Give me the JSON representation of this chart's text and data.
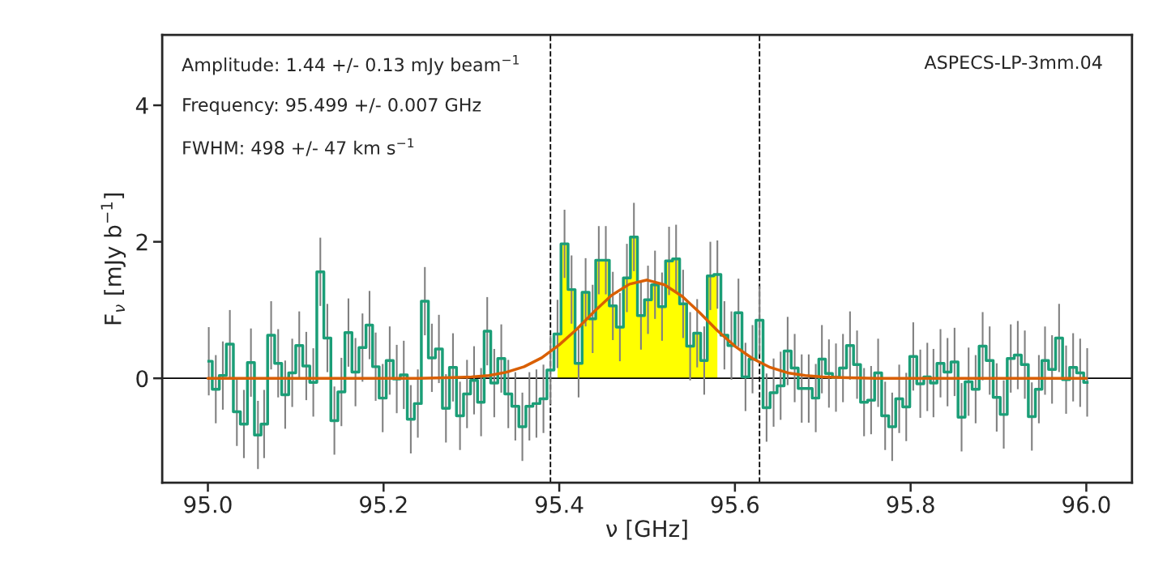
{
  "chart_data": {
    "type": "step",
    "xlabel": "ν [GHz]",
    "ylabel": "F$_{ν}$ [mJy b$^{−1}$]",
    "annotations": [
      "Amplitude: 1.44 +/- 0.13 mJy beam$^{−1}$",
      "Frequency: 95.499 +/- 0.007 GHz",
      "FWHM: 498 +/- 47 km s$^{−1}$",
      "ASPECS-LP-3mm.04"
    ],
    "xlim": [
      94.948,
      96.052
    ],
    "ylim": [
      -1.53,
      5.03
    ],
    "xticks": [
      {
        "value": 95.0,
        "label": "95.0"
      },
      {
        "value": 95.2,
        "label": "95.2"
      },
      {
        "value": 95.4,
        "label": "95.4"
      },
      {
        "value": 95.6,
        "label": "95.6"
      },
      {
        "value": 95.8,
        "label": "95.8"
      },
      {
        "value": 96.0,
        "label": "96.0"
      }
    ],
    "yticks": [
      0,
      2,
      4
    ],
    "grid": false,
    "ref_lines": [
      {
        "axis": "y",
        "value": 0,
        "color": "#000000",
        "line_style": "solid"
      },
      {
        "axis": "x",
        "value": 95.39,
        "color": "#000000",
        "line_style": "dashed"
      },
      {
        "axis": "x",
        "value": 95.628,
        "color": "#000000",
        "line_style": "dashed"
      }
    ],
    "series": [
      {
        "type": "area",
        "color": "#ffff00",
        "x": [
          95.398,
          95.406,
          95.414,
          95.422,
          95.43,
          95.438,
          95.445,
          95.453,
          95.461,
          95.469,
          95.477,
          95.485,
          95.493,
          95.501,
          95.509,
          95.517,
          95.525,
          95.533,
          95.541,
          95.549,
          95.557,
          95.565,
          95.572,
          95.58
        ],
        "values": [
          0.65,
          1.97,
          1.3,
          0.22,
          1.26,
          0.87,
          1.73,
          1.73,
          1.06,
          0.75,
          1.47,
          2.07,
          0.92,
          1.15,
          1.37,
          1.05,
          1.72,
          1.75,
          1.09,
          0.47,
          0.66,
          0.26,
          1.5,
          1.52
        ]
      },
      {
        "color": "#1b9e77",
        "x": [
          95.001,
          95.009,
          95.017,
          95.025,
          95.033,
          95.041,
          95.049,
          95.057,
          95.064,
          95.072,
          95.08,
          95.088,
          95.096,
          95.104,
          95.112,
          95.12,
          95.128,
          95.136,
          95.144,
          95.152,
          95.16,
          95.168,
          95.176,
          95.184,
          95.191,
          95.199,
          95.207,
          95.215,
          95.223,
          95.231,
          95.239,
          95.247,
          95.255,
          95.263,
          95.271,
          95.279,
          95.287,
          95.295,
          95.303,
          95.311,
          95.318,
          95.326,
          95.334,
          95.342,
          95.35,
          95.358,
          95.366,
          95.374,
          95.382,
          95.39,
          95.398,
          95.406,
          95.414,
          95.422,
          95.43,
          95.438,
          95.445,
          95.453,
          95.461,
          95.469,
          95.477,
          95.485,
          95.493,
          95.501,
          95.509,
          95.517,
          95.525,
          95.533,
          95.541,
          95.549,
          95.557,
          95.565,
          95.572,
          95.58,
          95.588,
          95.596,
          95.604,
          95.612,
          95.62,
          95.628,
          95.636,
          95.644,
          95.652,
          95.66,
          95.668,
          95.676,
          95.684,
          95.692,
          95.699,
          95.707,
          95.715,
          95.723,
          95.731,
          95.739,
          95.747,
          95.755,
          95.763,
          95.771,
          95.779,
          95.787,
          95.795,
          95.803,
          95.811,
          95.819,
          95.826,
          95.834,
          95.842,
          95.85,
          95.858,
          95.866,
          95.874,
          95.882,
          95.89,
          95.898,
          95.906,
          95.914,
          95.922,
          95.93,
          95.938,
          95.946,
          95.953,
          95.961,
          95.969,
          95.977,
          95.985,
          95.993,
          96.001
        ],
        "values": [
          0.25,
          -0.16,
          0.04,
          0.5,
          -0.49,
          -0.67,
          0.23,
          -0.83,
          -0.67,
          0.63,
          0.22,
          -0.24,
          0.08,
          0.48,
          0.18,
          -0.06,
          1.56,
          0.59,
          -0.62,
          -0.2,
          0.67,
          0.09,
          0.45,
          0.78,
          0.17,
          -0.29,
          0.26,
          -0.01,
          0.05,
          -0.6,
          -0.37,
          1.13,
          0.3,
          0.43,
          -0.44,
          0.16,
          -0.55,
          -0.23,
          -0.03,
          -0.35,
          0.69,
          -0.07,
          0.29,
          -0.23,
          -0.41,
          -0.71,
          -0.41,
          -0.37,
          -0.3,
          0.12,
          0.65,
          1.97,
          1.3,
          0.22,
          1.26,
          0.87,
          1.73,
          1.73,
          1.06,
          0.75,
          1.47,
          2.07,
          0.92,
          1.15,
          1.37,
          1.05,
          1.72,
          1.75,
          1.09,
          0.47,
          0.66,
          0.26,
          1.5,
          1.52,
          0.63,
          0.48,
          0.96,
          0.02,
          0.28,
          0.85,
          -0.43,
          -0.21,
          -0.11,
          0.4,
          0.15,
          -0.15,
          -0.15,
          -0.29,
          0.28,
          0.07,
          0.01,
          0.15,
          0.48,
          0.2,
          -0.35,
          -0.32,
          0.08,
          -0.55,
          -0.71,
          -0.3,
          -0.42,
          0.32,
          -0.08,
          0.02,
          -0.07,
          0.22,
          0.09,
          0.24,
          -0.57,
          -0.05,
          -0.16,
          0.47,
          0.26,
          -0.28,
          -0.53,
          0.29,
          0.34,
          0.2,
          -0.56,
          -0.16,
          0.26,
          0.13,
          0.59,
          -0.02,
          0.16,
          0.08,
          -0.06
        ],
        "errors": [
          0.5,
          0.5,
          0.5,
          0.5,
          0.5,
          0.5,
          0.5,
          0.5,
          0.5,
          0.5,
          0.5,
          0.5,
          0.5,
          0.5,
          0.5,
          0.5,
          0.5,
          0.5,
          0.5,
          0.5,
          0.5,
          0.5,
          0.5,
          0.5,
          0.5,
          0.5,
          0.5,
          0.5,
          0.5,
          0.5,
          0.5,
          0.5,
          0.5,
          0.5,
          0.5,
          0.5,
          0.5,
          0.5,
          0.5,
          0.5,
          0.5,
          0.5,
          0.5,
          0.5,
          0.5,
          0.5,
          0.5,
          0.5,
          0.5,
          0.5,
          0.5,
          0.5,
          0.5,
          0.5,
          0.5,
          0.5,
          0.5,
          0.5,
          0.5,
          0.5,
          0.5,
          0.5,
          0.5,
          0.5,
          0.5,
          0.5,
          0.5,
          0.5,
          0.5,
          0.5,
          0.5,
          0.5,
          0.5,
          0.5,
          0.5,
          0.5,
          0.5,
          0.5,
          0.5,
          0.5,
          0.5,
          0.5,
          0.5,
          0.5,
          0.5,
          0.5,
          0.5,
          0.5,
          0.5,
          0.5,
          0.5,
          0.5,
          0.5,
          0.5,
          0.5,
          0.5,
          0.5,
          0.5,
          0.5,
          0.5,
          0.5,
          0.5,
          0.5,
          0.5,
          0.5,
          0.5,
          0.5,
          0.5,
          0.5,
          0.5,
          0.5,
          0.5,
          0.5,
          0.5,
          0.5,
          0.5,
          0.5,
          0.5,
          0.5,
          0.5,
          0.5,
          0.5,
          0.5,
          0.5,
          0.5,
          0.5,
          0.5
        ]
      },
      {
        "type": "line",
        "color": "#d95f02",
        "x": [
          95.0,
          95.2,
          95.24,
          95.28,
          95.3,
          95.32,
          95.34,
          95.36,
          95.38,
          95.4,
          95.42,
          95.44,
          95.46,
          95.48,
          95.5,
          95.52,
          95.54,
          95.56,
          95.58,
          95.6,
          95.62,
          95.64,
          95.66,
          95.68,
          95.7,
          95.72,
          95.76,
          96.0
        ],
        "values": [
          0.0,
          0.0,
          0.0,
          0.01,
          0.02,
          0.04,
          0.09,
          0.17,
          0.3,
          0.49,
          0.72,
          0.98,
          1.22,
          1.38,
          1.44,
          1.37,
          1.2,
          0.96,
          0.7,
          0.47,
          0.29,
          0.16,
          0.08,
          0.04,
          0.02,
          0.01,
          0.0,
          0.0
        ]
      }
    ]
  }
}
